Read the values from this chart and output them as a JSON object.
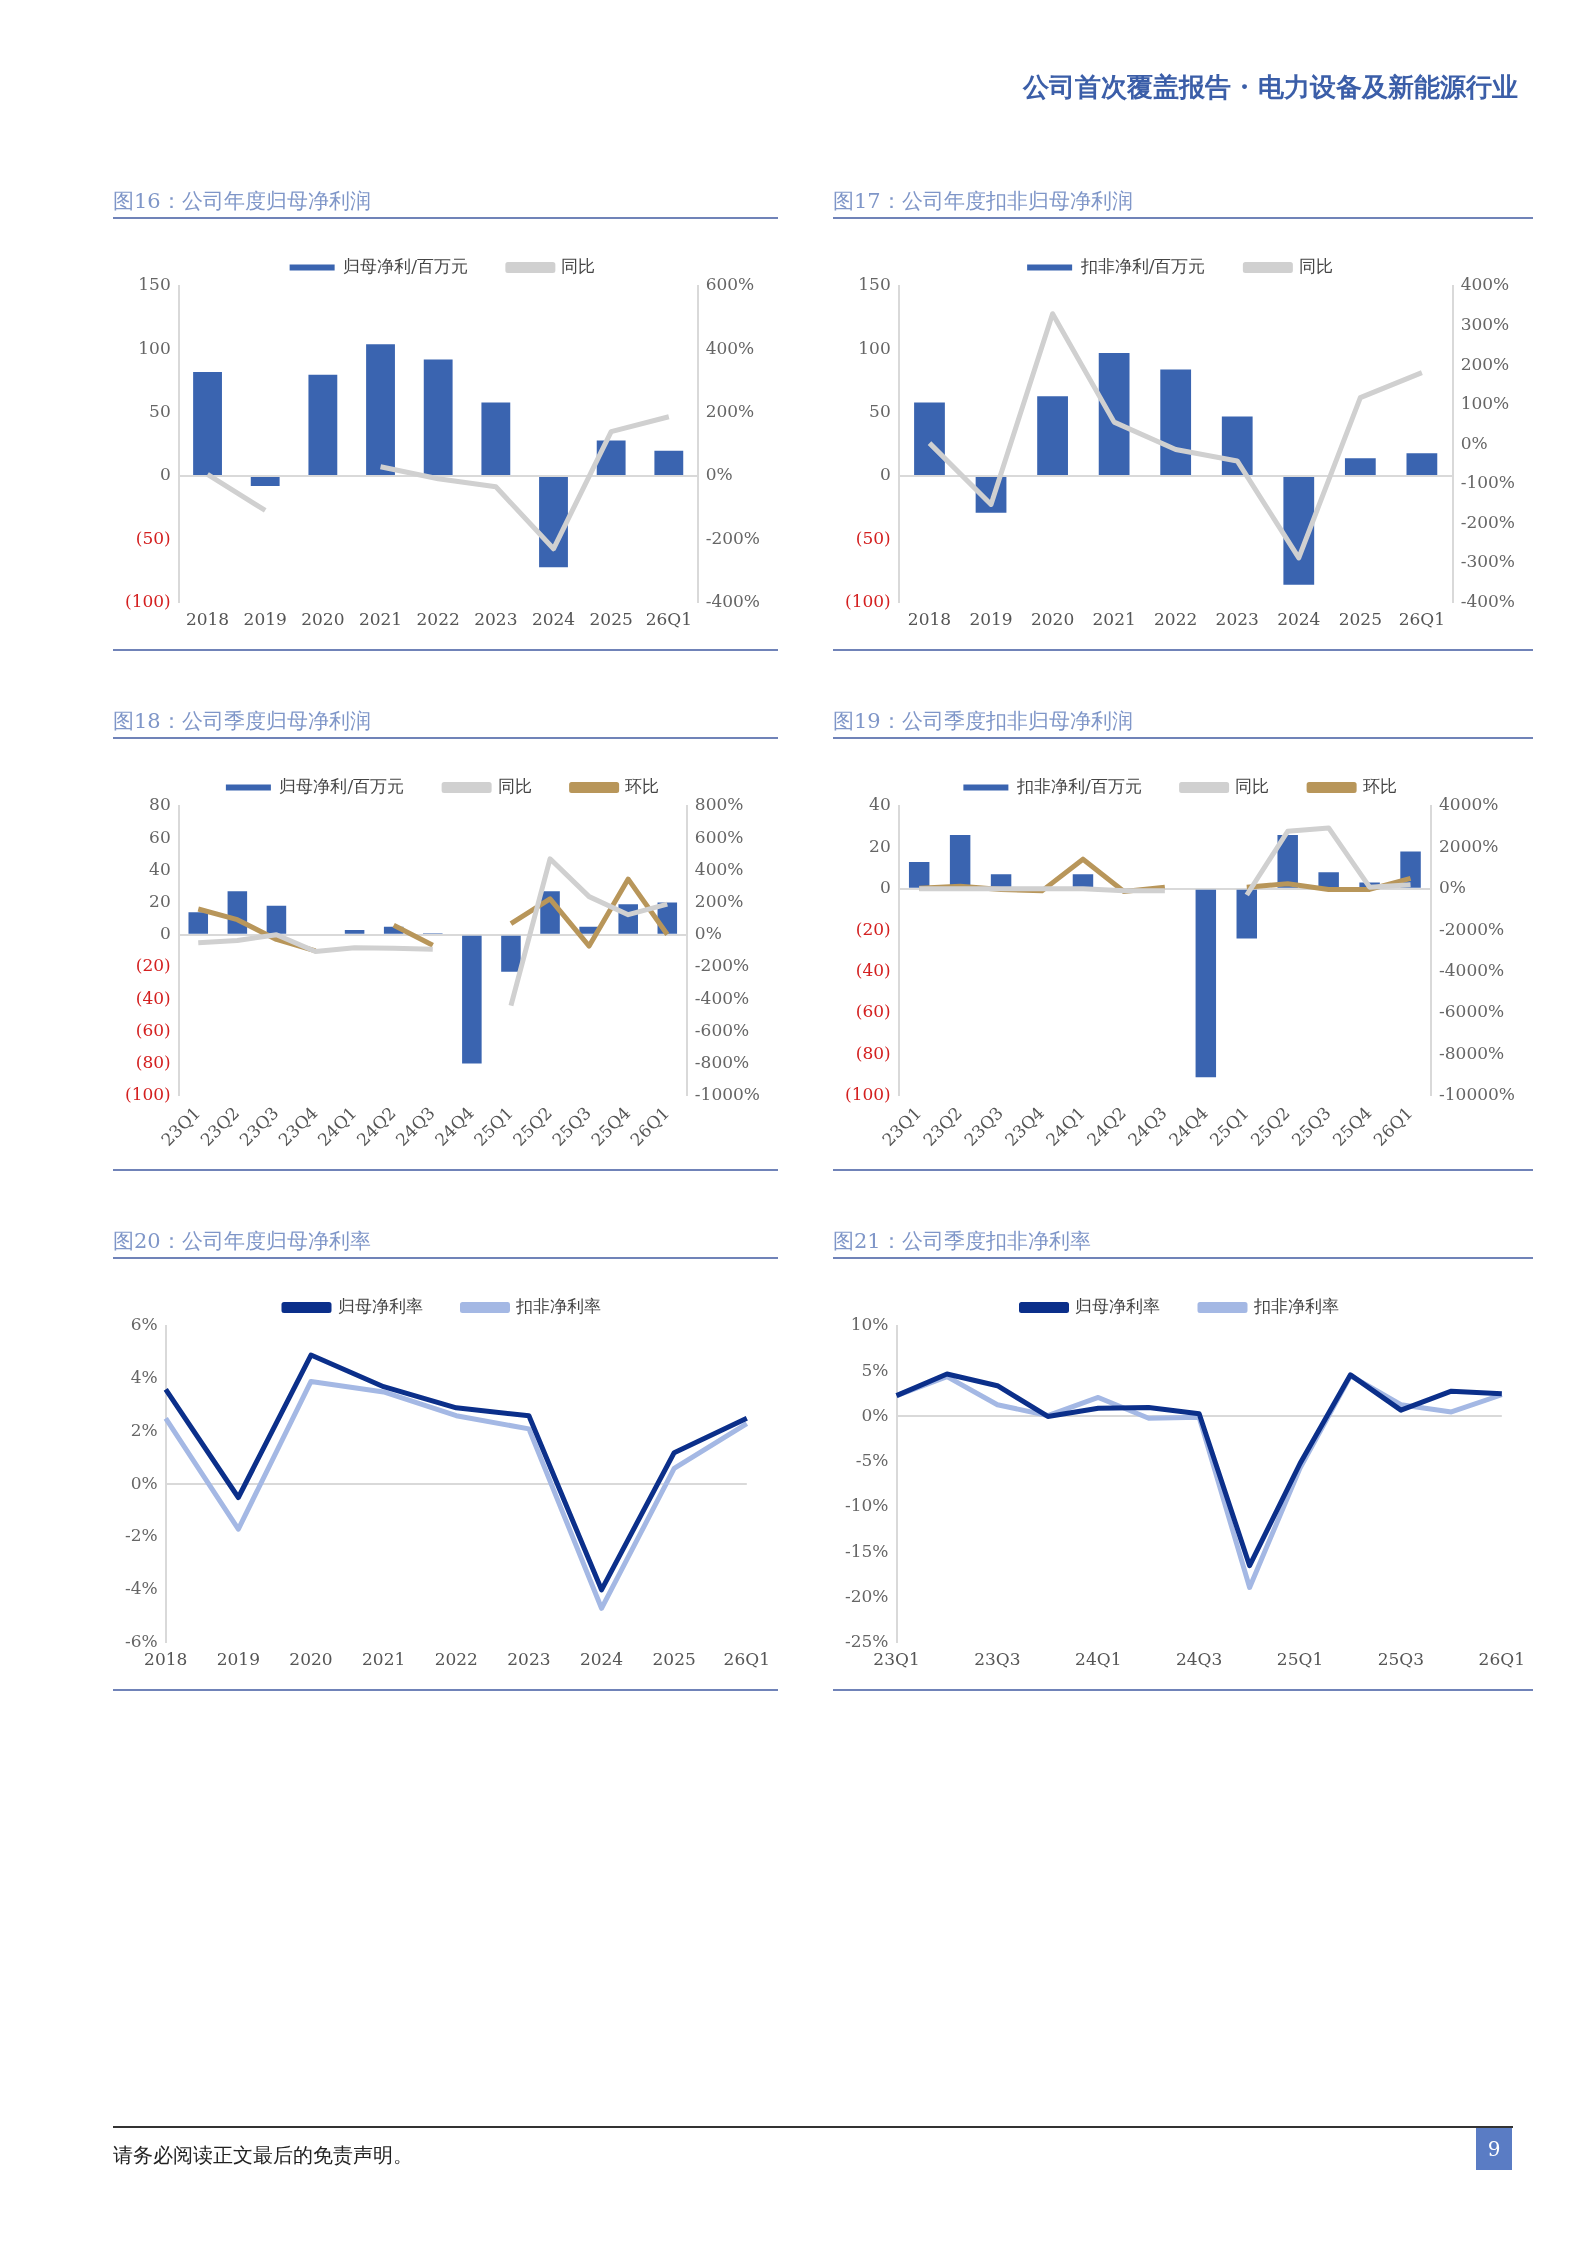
{
  "chart_data": [
    {
      "type": "bar",
      "title": "图16：公司年度归母净利润",
      "categories": [
        "2018",
        "2019",
        "2020",
        "2021",
        "2022",
        "2023",
        "2024",
        "2025",
        "26Q1"
      ],
      "series": [
        {
          "name": "归母净利/百万元",
          "type": "bar",
          "color": "#3a64b0",
          "values": [
            82,
            -8,
            80,
            104,
            92,
            58,
            -72,
            28,
            20
          ]
        },
        {
          "name": "同比",
          "type": "line",
          "axis": "y2",
          "color": "#d0d0d0",
          "values": [
            5,
            -109,
            null,
            29,
            -9,
            -34,
            -230,
            140,
            187
          ]
        }
      ],
      "ylim": [
        -100,
        150
      ],
      "yticks": [
        {
          "value": -100,
          "label": "(100)"
        },
        {
          "value": -50,
          "label": "(50)"
        },
        0,
        50,
        100,
        150
      ],
      "y2lim": [
        -400,
        600
      ],
      "y2ticks": [
        {
          "value": -400,
          "label": "-400%"
        },
        {
          "value": -200,
          "label": "-200%"
        },
        {
          "value": 0,
          "label": "0%"
        },
        {
          "value": 200,
          "label": "200%"
        },
        {
          "value": 400,
          "label": "400%"
        },
        {
          "value": 600,
          "label": "600%"
        }
      ],
      "legend": "top",
      "marker": "none",
      "annotations": [
        "公司首次覆盖报告 · 电力设备及新能源行业"
      ]
    },
    {
      "type": "bar",
      "title": "图17：公司年度扣非归母净利润",
      "categories": [
        "2018",
        "2019",
        "2020",
        "2021",
        "2022",
        "2023",
        "2024",
        "2025",
        "26Q1"
      ],
      "series": [
        {
          "name": "扣非净利/百万元",
          "type": "bar",
          "color": "#3a64b0",
          "values": [
            58,
            -29,
            63,
            97,
            84,
            47,
            -86,
            14,
            18
          ]
        },
        {
          "name": "同比",
          "type": "line",
          "axis": "y2",
          "color": "#d0d0d0",
          "values": [
            3,
            -152,
            330,
            56,
            -13,
            -42,
            -287,
            118,
            181
          ]
        }
      ],
      "ylim": [
        -100,
        150
      ],
      "yticks": [
        {
          "value": -100,
          "label": "(100)"
        },
        {
          "value": -50,
          "label": "(50)"
        },
        0,
        50,
        100,
        150
      ],
      "y2lim": [
        -400,
        400
      ],
      "y2ticks": [
        {
          "value": -400,
          "label": "-400%"
        },
        {
          "value": -300,
          "label": "-300%"
        },
        {
          "value": -200,
          "label": "-200%"
        },
        {
          "value": -100,
          "label": "-100%"
        },
        {
          "value": 0,
          "label": "0%"
        },
        {
          "value": 100,
          "label": "100%"
        },
        {
          "value": 200,
          "label": "200%"
        },
        {
          "value": 300,
          "label": "300%"
        },
        {
          "value": 400,
          "label": "400%"
        }
      ],
      "legend": "top",
      "marker": "none"
    },
    {
      "type": "bar",
      "title": "图18：公司季度归母净利润",
      "categories": [
        "23Q1",
        "23Q2",
        "23Q3",
        "23Q4",
        "24Q1",
        "24Q2",
        "24Q3",
        "24Q4",
        "25Q1",
        "25Q2",
        "25Q3",
        "25Q4",
        "26Q1"
      ],
      "series": [
        {
          "name": "归母净利/百万元",
          "type": "bar",
          "color": "#3a64b0",
          "values": [
            14,
            27,
            18,
            0,
            3,
            5,
            1,
            -80,
            -23,
            27,
            5,
            19,
            20
          ]
        },
        {
          "name": "同比",
          "type": "line",
          "axis": "y2",
          "color": "#d0d0d0",
          "values": [
            -49,
            -35,
            0,
            -104,
            -80,
            -84,
            -90,
            null,
            -440,
            472,
            237,
            125,
            190
          ]
        },
        {
          "name": "环比",
          "type": "line",
          "axis": "y2",
          "color": "#b8965a",
          "values": [
            160,
            94,
            -29,
            -100,
            null,
            59,
            -65,
            null,
            70,
            223,
            -70,
            346,
            2
          ]
        }
      ],
      "ylim": [
        -100,
        80
      ],
      "yticks": [
        {
          "value": -100,
          "label": "(100)"
        },
        {
          "value": -80,
          "label": "(80)"
        },
        {
          "value": -60,
          "label": "(60)"
        },
        {
          "value": -40,
          "label": "(40)"
        },
        {
          "value": -20,
          "label": "(20)"
        },
        0,
        20,
        40,
        60,
        80
      ],
      "y2lim": [
        -1000,
        800
      ],
      "y2ticks": [
        {
          "value": -1000,
          "label": "-1000%"
        },
        {
          "value": -800,
          "label": "-800%"
        },
        {
          "value": -600,
          "label": "-600%"
        },
        {
          "value": -400,
          "label": "-400%"
        },
        {
          "value": -200,
          "label": "-200%"
        },
        {
          "value": 0,
          "label": "0%"
        },
        {
          "value": 200,
          "label": "200%"
        },
        {
          "value": 400,
          "label": "400%"
        },
        {
          "value": 600,
          "label": "600%"
        },
        {
          "value": 800,
          "label": "800%"
        }
      ],
      "legend": "top",
      "marker": "none"
    },
    {
      "type": "bar",
      "title": "图19：公司季度扣非归母净利润",
      "categories": [
        "23Q1",
        "23Q2",
        "23Q3",
        "23Q4",
        "24Q1",
        "24Q2",
        "24Q3",
        "24Q4",
        "25Q1",
        "25Q2",
        "25Q3",
        "25Q4",
        "26Q1"
      ],
      "series": [
        {
          "name": "扣非净利/百万元",
          "type": "bar",
          "color": "#3a64b0",
          "values": [
            13,
            26,
            7,
            0,
            7,
            0,
            0,
            -91,
            -24,
            26,
            8,
            3,
            18
          ]
        },
        {
          "name": "同比",
          "type": "line",
          "axis": "y2",
          "color": "#d0d0d0",
          "values": [
            0,
            0,
            0,
            0,
            0,
            -100,
            -100,
            null,
            -300,
            2780,
            2940,
            80,
            200
          ]
        },
        {
          "name": "环比",
          "type": "line",
          "axis": "y2",
          "color": "#b8965a",
          "values": [
            30,
            120,
            -30,
            -100,
            1430,
            -130,
            80,
            null,
            80,
            240,
            -30,
            -30,
            500
          ]
        }
      ],
      "ylim": [
        -100,
        40
      ],
      "yticks": [
        {
          "value": -100,
          "label": "(100)"
        },
        {
          "value": -80,
          "label": "(80)"
        },
        {
          "value": -60,
          "label": "(60)"
        },
        {
          "value": -40,
          "label": "(40)"
        },
        {
          "value": -20,
          "label": "(20)"
        },
        0,
        20,
        40
      ],
      "y2lim": [
        -10000,
        4000
      ],
      "y2ticks": [
        {
          "value": -10000,
          "label": "-10000%"
        },
        {
          "value": -8000,
          "label": "-8000%"
        },
        {
          "value": -6000,
          "label": "-6000%"
        },
        {
          "value": -4000,
          "label": "-4000%"
        },
        {
          "value": -2000,
          "label": "-2000%"
        },
        {
          "value": 0,
          "label": "0%"
        },
        {
          "value": 2000,
          "label": "2000%"
        },
        {
          "value": 4000,
          "label": "4000%"
        }
      ],
      "legend": "top",
      "marker": "none"
    },
    {
      "type": "line",
      "title": "图20：公司年度归母净利率",
      "categories": [
        "2018",
        "2019",
        "2020",
        "2021",
        "2022",
        "2023",
        "2024",
        "2025",
        "26Q1"
      ],
      "series": [
        {
          "name": "归母净利率",
          "color": "#0b2f8a",
          "values": [
            3.6,
            -0.5,
            4.9,
            3.7,
            2.9,
            2.6,
            -4.0,
            1.2,
            2.5
          ]
        },
        {
          "name": "扣非净利率",
          "color": "#a4b8e4",
          "values": [
            2.5,
            -1.7,
            3.9,
            3.5,
            2.6,
            2.1,
            -4.7,
            0.6,
            2.3
          ]
        }
      ],
      "ylim": [
        -6,
        6
      ],
      "yticks": [
        {
          "value": -6,
          "label": "-6%"
        },
        {
          "value": -4,
          "label": "-4%"
        },
        {
          "value": -2,
          "label": "-2%"
        },
        {
          "value": 0,
          "label": "0%"
        },
        {
          "value": 2,
          "label": "2%"
        },
        {
          "value": 4,
          "label": "4%"
        },
        {
          "value": 6,
          "label": "6%"
        }
      ],
      "legend": "top",
      "marker": "none"
    },
    {
      "type": "line",
      "title": "图21：公司季度扣非净利率",
      "categories": [
        "23Q1",
        null,
        "23Q3",
        null,
        "24Q1",
        null,
        "24Q3",
        null,
        "25Q1",
        null,
        "25Q3",
        null,
        "26Q1"
      ],
      "series": [
        {
          "name": "归母净利率",
          "color": "#0b2f8a",
          "values": [
            2.3,
            4.7,
            3.4,
            0,
            0.9,
            1.0,
            0.3,
            -16.5,
            -5.2,
            4.6,
            0.7,
            2.8,
            2.5
          ]
        },
        {
          "name": "扣非净利率",
          "color": "#a4b8e4",
          "values": [
            2.3,
            4.4,
            1.3,
            0.1,
            2.1,
            -0.2,
            -0.1,
            -18.9,
            -5.7,
            4.5,
            1.3,
            0.5,
            2.4
          ]
        }
      ],
      "ylim": [
        -25,
        10
      ],
      "yticks": [
        {
          "value": -25,
          "label": "-25%"
        },
        {
          "value": -20,
          "label": "-20%"
        },
        {
          "value": -15,
          "label": "-15%"
        },
        {
          "value": -10,
          "label": "-10%"
        },
        {
          "value": -5,
          "label": "-5%"
        },
        {
          "value": 0,
          "label": "0%"
        },
        {
          "value": 5,
          "label": "5%"
        },
        {
          "value": 10,
          "label": "10%"
        }
      ],
      "legend": "top",
      "marker": "none",
      "annotations": [
        "请务必阅读正文最后的免责声明。",
        "9"
      ]
    }
  ]
}
